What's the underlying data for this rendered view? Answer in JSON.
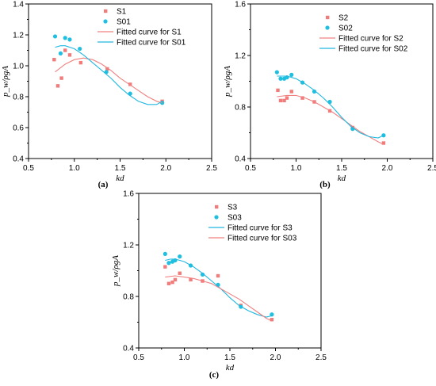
{
  "colors": {
    "red": "#f07c7c",
    "blue": "#1fbfe0",
    "redLine": "#f08080",
    "blueLine": "#20b8e0"
  },
  "chart_data": [
    {
      "type": "scatter",
      "panel_label": "(a)",
      "xlabel": "kd",
      "ylabel": "p_w/ρgA",
      "xlim": [
        0.5,
        2.5
      ],
      "ylim": [
        0.4,
        1.4
      ],
      "xticks": [
        "0.5",
        "1.0",
        "1.5",
        "2.0",
        "2.5"
      ],
      "yticks": [
        "0.4",
        "0.6",
        "0.8",
        "1.0",
        "1.2",
        "1.4"
      ],
      "legend_position": "top-right",
      "series": [
        {
          "name": "S1",
          "kind": "square",
          "color": "red",
          "x": [
            0.78,
            0.82,
            0.86,
            0.9,
            0.95,
            1.07,
            1.36,
            1.61,
            1.96
          ],
          "y": [
            1.04,
            0.87,
            0.92,
            1.1,
            1.07,
            1.02,
            0.98,
            0.88,
            0.77
          ]
        },
        {
          "name": "S01",
          "kind": "circle",
          "color": "blue",
          "x": [
            0.79,
            0.85,
            0.9,
            0.95,
            1.06,
            1.35,
            1.61,
            1.96
          ],
          "y": [
            1.19,
            1.08,
            1.18,
            1.17,
            1.11,
            0.96,
            0.82,
            0.76
          ]
        },
        {
          "name": "Fitted curve for S1",
          "kind": "line",
          "color": "redLine",
          "x": [
            0.79,
            0.9,
            1.0,
            1.1,
            1.2,
            1.3,
            1.4,
            1.5,
            1.6,
            1.7,
            1.8,
            1.9,
            1.96
          ],
          "y": [
            0.96,
            1.01,
            1.04,
            1.05,
            1.04,
            1.01,
            0.97,
            0.92,
            0.88,
            0.84,
            0.8,
            0.77,
            0.76
          ]
        },
        {
          "name": "Fitted curve for S01",
          "kind": "line",
          "color": "blueLine",
          "x": [
            0.79,
            0.85,
            0.9,
            1.0,
            1.1,
            1.2,
            1.3,
            1.4,
            1.5,
            1.6,
            1.7,
            1.8,
            1.9,
            1.96
          ],
          "y": [
            1.12,
            1.13,
            1.13,
            1.11,
            1.07,
            1.02,
            0.97,
            0.92,
            0.86,
            0.81,
            0.77,
            0.75,
            0.75,
            0.77
          ]
        }
      ]
    },
    {
      "type": "scatter",
      "panel_label": "(b)",
      "xlabel": "kd",
      "ylabel": "p_w/ρgA",
      "xlim": [
        0.5,
        2.5
      ],
      "ylim": [
        0.4,
        1.6
      ],
      "xticks": [
        "0.5",
        "1.0",
        "1.5",
        "2.0",
        "2.5"
      ],
      "yticks": [
        "0.4",
        "0.8",
        "1.2",
        "1.6"
      ],
      "legend_position": "top-right",
      "series": [
        {
          "name": "S2",
          "kind": "square",
          "color": "red",
          "x": [
            0.8,
            0.83,
            0.87,
            0.9,
            0.95,
            1.07,
            1.2,
            1.37,
            1.62,
            1.96
          ],
          "y": [
            0.93,
            0.85,
            0.85,
            0.87,
            0.92,
            0.87,
            0.84,
            0.77,
            0.64,
            0.52
          ]
        },
        {
          "name": "S02",
          "kind": "circle",
          "color": "blue",
          "x": [
            0.79,
            0.83,
            0.87,
            0.9,
            0.95,
            1.07,
            1.2,
            1.37,
            1.62,
            1.96
          ],
          "y": [
            1.07,
            1.02,
            1.02,
            1.03,
            1.05,
            0.99,
            0.92,
            0.84,
            0.63,
            0.58
          ]
        },
        {
          "name": "Fitted curve for S2",
          "kind": "line",
          "color": "redLine",
          "x": [
            0.79,
            0.9,
            1.0,
            1.1,
            1.2,
            1.3,
            1.4,
            1.5,
            1.6,
            1.7,
            1.8,
            1.9,
            1.96
          ],
          "y": [
            0.88,
            0.89,
            0.89,
            0.87,
            0.84,
            0.8,
            0.76,
            0.71,
            0.66,
            0.61,
            0.57,
            0.53,
            0.51
          ]
        },
        {
          "name": "Fitted curve for S02",
          "kind": "line",
          "color": "blueLine",
          "x": [
            0.79,
            0.85,
            0.9,
            1.0,
            1.1,
            1.2,
            1.3,
            1.4,
            1.5,
            1.6,
            1.7,
            1.8,
            1.9,
            1.96
          ],
          "y": [
            1.04,
            1.04,
            1.04,
            1.02,
            0.98,
            0.93,
            0.87,
            0.8,
            0.72,
            0.65,
            0.6,
            0.57,
            0.56,
            0.58
          ]
        }
      ]
    },
    {
      "type": "scatter",
      "panel_label": "(c)",
      "xlabel": "kd",
      "ylabel": "p_w/ρgA",
      "xlim": [
        0.5,
        2.5
      ],
      "ylim": [
        0.4,
        1.6
      ],
      "xticks": [
        "0.5",
        "1.0",
        "1.5",
        "2.0",
        "2.5"
      ],
      "yticks": [
        "0.4",
        "0.8",
        "1.2",
        "1.6"
      ],
      "legend_position": "top-right",
      "series": [
        {
          "name": "S3",
          "kind": "square",
          "color": "red",
          "x": [
            0.79,
            0.83,
            0.87,
            0.9,
            0.95,
            1.07,
            1.2,
            1.37,
            1.62,
            1.96
          ],
          "y": [
            1.03,
            0.9,
            0.91,
            0.93,
            0.98,
            0.93,
            0.92,
            0.96,
            0.73,
            0.62
          ]
        },
        {
          "name": "S03",
          "kind": "circle",
          "color": "blue",
          "x": [
            0.79,
            0.83,
            0.87,
            0.9,
            0.95,
            1.07,
            1.2,
            1.37,
            1.62,
            1.96
          ],
          "y": [
            1.13,
            1.06,
            1.07,
            1.08,
            1.11,
            1.04,
            0.97,
            0.89,
            0.72,
            0.66
          ]
        },
        {
          "name": "Fitted curve for S3",
          "kind": "line",
          "color": "blueLine",
          "x": [
            0.79,
            0.85,
            0.9,
            1.0,
            1.1,
            1.2,
            1.3,
            1.4,
            1.5,
            1.6,
            1.7,
            1.8,
            1.9,
            1.96
          ],
          "y": [
            1.08,
            1.09,
            1.09,
            1.07,
            1.03,
            0.98,
            0.92,
            0.86,
            0.79,
            0.73,
            0.69,
            0.66,
            0.64,
            0.65
          ]
        },
        {
          "name": "Fitted curve for S03",
          "kind": "line",
          "color": "redLine",
          "x": [
            0.79,
            0.9,
            1.0,
            1.1,
            1.2,
            1.3,
            1.4,
            1.5,
            1.6,
            1.7,
            1.8,
            1.9,
            1.96
          ],
          "y": [
            0.95,
            0.96,
            0.95,
            0.94,
            0.92,
            0.9,
            0.86,
            0.82,
            0.78,
            0.73,
            0.68,
            0.63,
            0.61
          ]
        }
      ]
    }
  ]
}
